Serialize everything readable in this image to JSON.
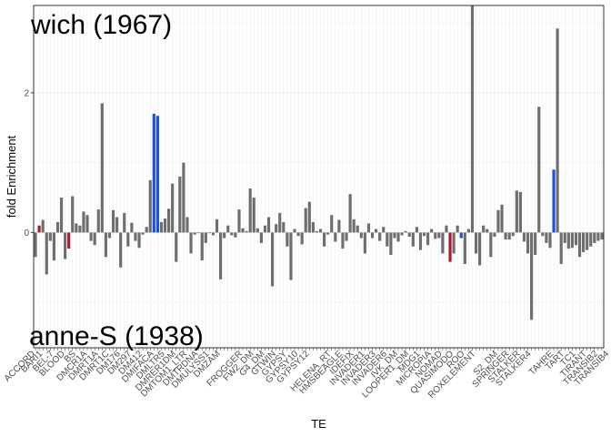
{
  "chart_data": {
    "type": "bar",
    "xlabel": "TE",
    "ylabel": "fold Enrichment",
    "ylim": [
      -1.65,
      3.25
    ],
    "yticks": [
      0,
      2
    ],
    "grid": true,
    "legend": "none",
    "annotations": {
      "top": "wich (1967)",
      "bottom": "anne-S (1938)"
    },
    "colors": {
      "default": "#6e6e6e",
      "red": "#b2182b",
      "blue": "#1f4fe0",
      "grid": "#ebebeb",
      "border": "#333333"
    },
    "tick_labels": [
      {
        "index": 0,
        "text": "ACCORD"
      },
      {
        "index": 2,
        "text": "BARI1"
      },
      {
        "index": 5,
        "text": "BEL-7"
      },
      {
        "index": 8,
        "text": "BLOOD"
      },
      {
        "index": 11,
        "text": "BS"
      },
      {
        "index": 14,
        "text": "DMCR1A"
      },
      {
        "index": 17,
        "text": "DMRT1A"
      },
      {
        "index": 20,
        "text": "DMRT1C"
      },
      {
        "index": 23,
        "text": "DM176"
      },
      {
        "index": 26,
        "text": "DM297"
      },
      {
        "index": 29,
        "text": "DM412"
      },
      {
        "index": 32,
        "text": "DMIFACA"
      },
      {
        "index": 35,
        "text": "DMLTR5"
      },
      {
        "index": 38,
        "text": "DMRER1DM"
      },
      {
        "index": 41,
        "text": "DMTOM1_LTR"
      },
      {
        "index": 44,
        "text": "DMTRDNA"
      },
      {
        "index": 47,
        "text": "DMULYSS1"
      },
      {
        "index": 50,
        "text": "DMZAM"
      },
      {
        "index": 56,
        "text": "FROGGER"
      },
      {
        "index": 59,
        "text": "FW2_DM"
      },
      {
        "index": 62,
        "text": "G4_DM"
      },
      {
        "index": 65,
        "text": "GTWIN"
      },
      {
        "index": 68,
        "text": "GYPSY"
      },
      {
        "index": 71,
        "text": "GYPSY10"
      },
      {
        "index": 74,
        "text": "GYPSY12"
      },
      {
        "index": 80,
        "text": "HELENA_RT"
      },
      {
        "index": 83,
        "text": "HMSBEAGLE"
      },
      {
        "index": 86,
        "text": "IDEFIX"
      },
      {
        "index": 89,
        "text": "INVADER1"
      },
      {
        "index": 92,
        "text": "INVADER3"
      },
      {
        "index": 95,
        "text": "INVADER6"
      },
      {
        "index": 98,
        "text": "IVK_DM"
      },
      {
        "index": 101,
        "text": "LOOPER1_DM"
      },
      {
        "index": 104,
        "text": "MDG1"
      },
      {
        "index": 107,
        "text": "MICROPIA"
      },
      {
        "index": 110,
        "text": "NOMAD"
      },
      {
        "index": 113,
        "text": "QUASIMODO"
      },
      {
        "index": 116,
        "text": "ROO"
      },
      {
        "index": 119,
        "text": "ROXELEMENT"
      },
      {
        "index": 125,
        "text": "S2_DM"
      },
      {
        "index": 128,
        "text": "SPRINGER"
      },
      {
        "index": 131,
        "text": "STALKER"
      },
      {
        "index": 134,
        "text": "STALKER4"
      },
      {
        "index": 140,
        "text": "TAHRE"
      },
      {
        "index": 143,
        "text": "TART"
      },
      {
        "index": 146,
        "text": "TC1"
      },
      {
        "index": 149,
        "text": "TIRANT"
      },
      {
        "index": 152,
        "text": "TRANSIB2"
      },
      {
        "index": 155,
        "text": "TRANSIB4"
      }
    ],
    "values": [
      -0.35,
      0.1,
      0.18,
      -0.6,
      -0.12,
      -0.4,
      0.15,
      0.5,
      -0.38,
      -0.23,
      0.52,
      0.13,
      0.1,
      0.3,
      0.25,
      -0.12,
      -0.18,
      0.33,
      1.85,
      -0.35,
      -0.08,
      0.32,
      0.22,
      -0.5,
      0.28,
      -0.2,
      0.14,
      -0.12,
      -0.22,
      -0.03,
      0.08,
      0.75,
      1.7,
      1.67,
      0.15,
      0.2,
      0.34,
      0.7,
      -0.42,
      0.8,
      1,
      0.22,
      -0.3,
      -0.03,
      -0.01,
      -0.4,
      -0.15,
      -0.01,
      -0.04,
      0.19,
      -0.67,
      -0.08,
      0.1,
      -0.04,
      -0.07,
      0.33,
      0.06,
      0.02,
      0.63,
      0.5,
      0.06,
      -0.15,
      0.1,
      0.22,
      -0.77,
      0.12,
      0.28,
      0.15,
      -0.2,
      -0.68,
      0.05,
      -0.05,
      -0.17,
      0.35,
      0.44,
      0.15,
      0.02,
      0.05,
      -0.2,
      -0.03,
      0.25,
      -0.13,
      0.18,
      -0.23,
      -0.12,
      0.55,
      0.19,
      0.1,
      -0.08,
      -0.3,
      0.13,
      -0.08,
      0.05,
      -0.12,
      0.08,
      -0.2,
      -0.32,
      -0.08,
      -0.13,
      -0.04,
      0.02,
      -0.06,
      -0.2,
      0.08,
      -0.25,
      -0.05,
      -0.18,
      0.05,
      -0.09,
      -0.08,
      -0.3,
      0.1,
      -0.42,
      -0.3,
      0.1,
      -0.08,
      -0.45,
      0.05,
      3.25,
      -0.3,
      -0.47,
      0.1,
      0.05,
      -0.35,
      -0.06,
      0.32,
      0.4,
      -0.1,
      -0.1,
      -0.05,
      0.6,
      0.58,
      -0.13,
      -0.3,
      -1.25,
      -0.32,
      1.8,
      -0.05,
      -0.15,
      -0.22,
      0.9,
      2.92,
      -0.45,
      -0.15,
      -0.23,
      -0.22,
      -0.18,
      -0.35,
      -0.28,
      -0.25,
      -0.2,
      -0.15,
      -0.12,
      -0.1
    ],
    "highlights": {
      "red": [
        1,
        9,
        112
      ],
      "blue": [
        32,
        33,
        115,
        140
      ]
    }
  }
}
